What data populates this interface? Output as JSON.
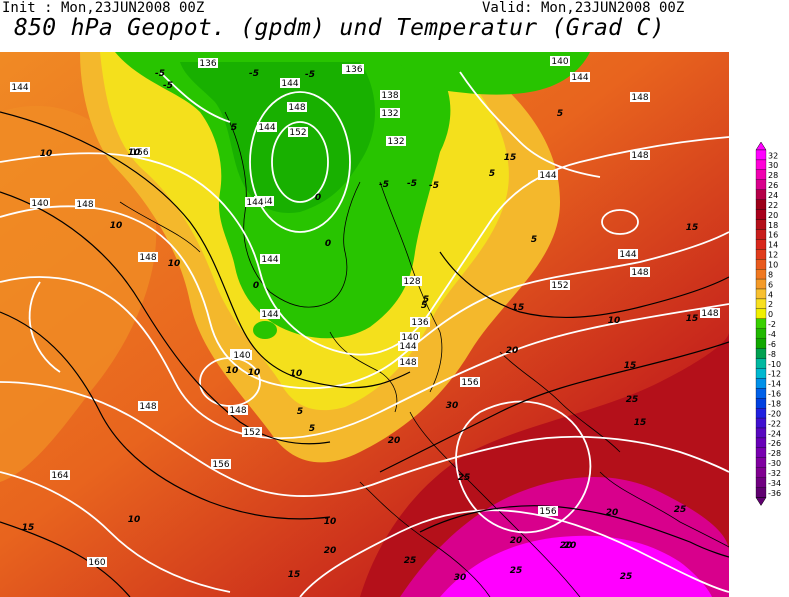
{
  "header": {
    "init": "Init : Mon,23JUN2008 00Z",
    "valid": "Valid: Mon,23JUN2008 00Z",
    "title": "850 hPa Geopot. (gpdm) und Temperatur (Grad C)"
  },
  "legend": {
    "labels": [
      "32",
      "30",
      "28",
      "26",
      "24",
      "22",
      "20",
      "18",
      "16",
      "14",
      "12",
      "10",
      "8",
      "6",
      "4",
      "2",
      "0",
      "-2",
      "-4",
      "-6",
      "-8",
      "-10",
      "-12",
      "-14",
      "-16",
      "-18",
      "-20",
      "-22",
      "-24",
      "-26",
      "-28",
      "-30",
      "-32",
      "-34",
      "-36"
    ],
    "colors": [
      "#ff00ff",
      "#ff00d8",
      "#f000b0",
      "#d8008c",
      "#b40048",
      "#9c0018",
      "#a8001c",
      "#b4101a",
      "#c81e1c",
      "#d8281c",
      "#e03c1c",
      "#e85a1e",
      "#f07820",
      "#f49a28",
      "#f8c030",
      "#f8e020",
      "#f0f000",
      "#38d000",
      "#20b800",
      "#10a800",
      "#00a050",
      "#00b8a0",
      "#00b8d0",
      "#0090e8",
      "#0060e8",
      "#0040e0",
      "#2020e0",
      "#4010d0",
      "#5808c0",
      "#6800b8",
      "#7800b0",
      "#8000a0",
      "#800090",
      "#700080",
      "#600070"
    ]
  },
  "map": {
    "geopotential_labels": [
      "136",
      "136",
      "144",
      "148",
      "152",
      "144",
      "136",
      "138",
      "132",
      "132",
      "144",
      "140",
      "148",
      "144",
      "144",
      "144",
      "148",
      "144",
      "148",
      "148",
      "148",
      "144",
      "140",
      "140",
      "148",
      "152",
      "148",
      "128",
      "136",
      "140",
      "144",
      "148",
      "156",
      "156",
      "152",
      "148",
      "140",
      "156",
      "164",
      "160",
      "156",
      "144",
      "144"
    ],
    "temperature_labels": [
      "-5",
      "-5",
      "-5",
      "-5",
      "0",
      "0",
      "0",
      "5",
      "5",
      "5",
      "5",
      "5",
      "5",
      "5",
      "5",
      "10",
      "10",
      "10",
      "10",
      "10",
      "10",
      "10",
      "10",
      "10",
      "10",
      "15",
      "15",
      "15",
      "15",
      "15",
      "15",
      "15",
      "15",
      "20",
      "20",
      "20",
      "20",
      "20",
      "20",
      "20",
      "25",
      "25",
      "25",
      "25",
      "25",
      "25",
      "30",
      "30",
      "-5",
      "-5",
      "-5"
    ]
  }
}
